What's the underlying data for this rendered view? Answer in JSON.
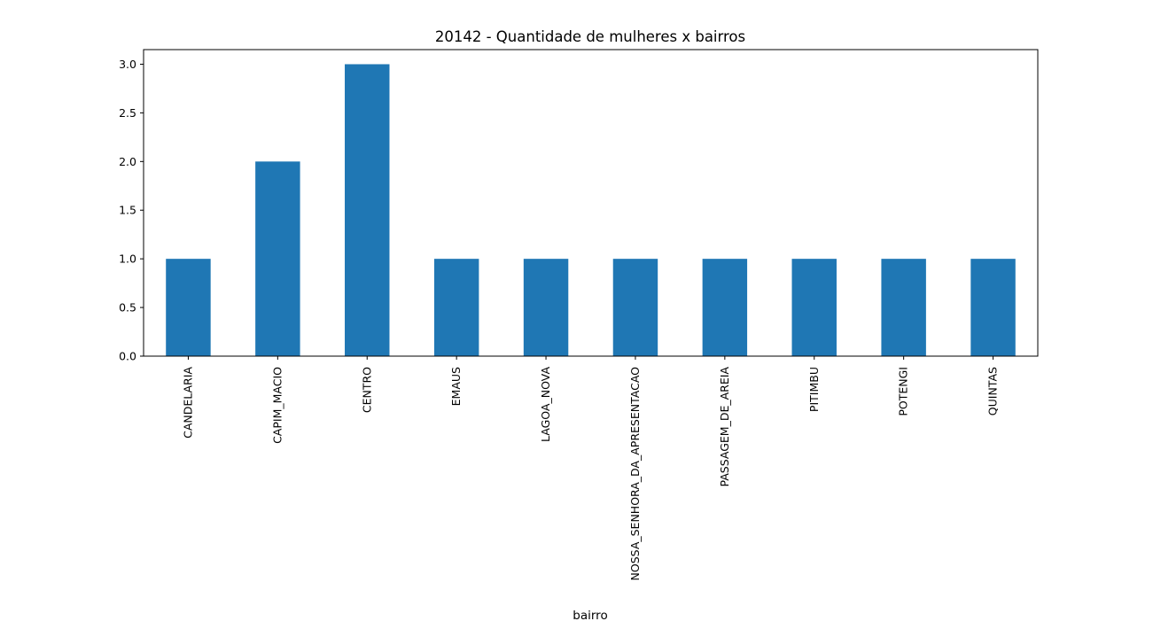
{
  "chart_data": {
    "type": "bar",
    "title": "20142 - Quantidade de mulheres x bairros",
    "xlabel": "bairro",
    "ylabel": "",
    "categories": [
      "CANDELARIA",
      "CAPIM_MACIO",
      "CENTRO",
      "EMAUS",
      "LAGOA_NOVA",
      "NOSSA_SENHORA_DA_APRESENTACAO",
      "PASSAGEM_DE_AREIA",
      "PITIMBU",
      "POTENGI",
      "QUINTAS"
    ],
    "values": [
      1,
      2,
      3,
      1,
      1,
      1,
      1,
      1,
      1,
      1
    ],
    "yticks": [
      "0.0",
      "0.5",
      "1.0",
      "1.5",
      "2.0",
      "2.5",
      "3.0"
    ],
    "ylim": [
      0,
      3.15
    ],
    "grid": false,
    "legend": "none",
    "colors": {
      "bar": "#1f77b4"
    }
  }
}
